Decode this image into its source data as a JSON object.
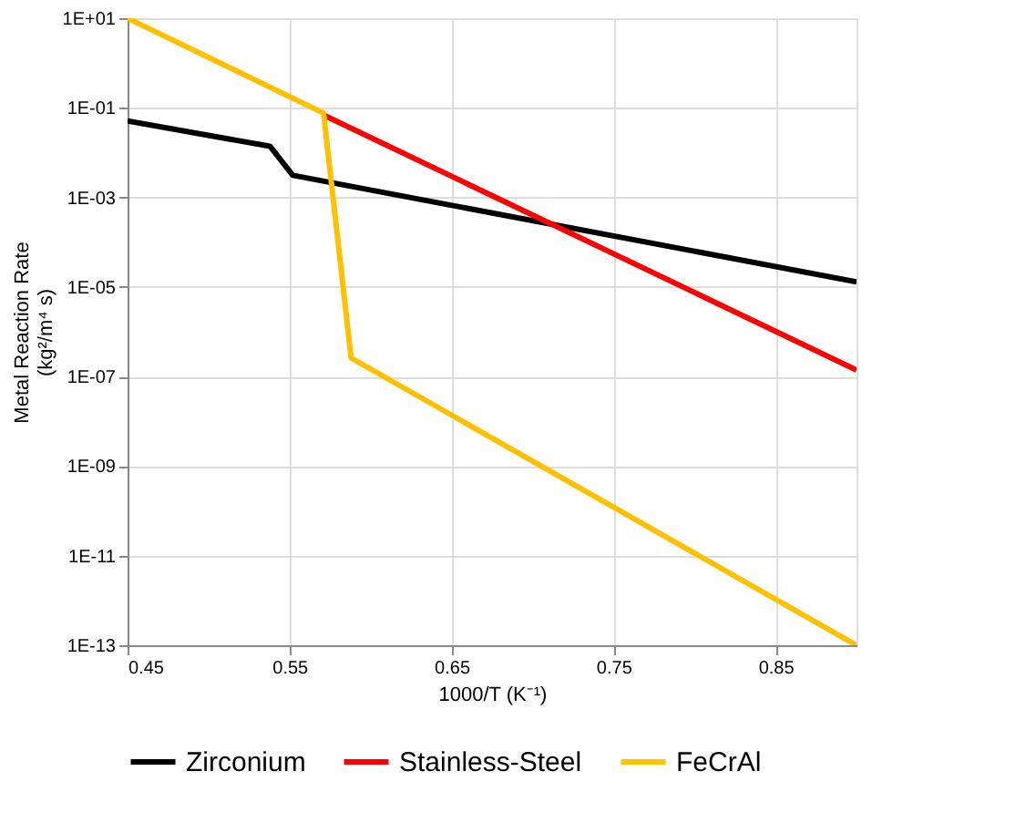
{
  "chart_data": {
    "type": "line",
    "xlabel": "1000/T (K⁻¹)",
    "ylabel": "Metal Reaction Rate\n(kg²/m⁴ s)",
    "series": [
      {
        "name": "Zirconium",
        "color": "#000000",
        "x": [
          0.45,
          0.538,
          0.552,
          0.9
        ],
        "values": [
          0.051,
          0.0138,
          0.0031,
          1.3e-05
        ]
      },
      {
        "name": "Stainless-Steel",
        "color": "#ff0000",
        "x": [
          0.571,
          0.9
        ],
        "values": [
          0.069,
          1.4e-07
        ]
      },
      {
        "name": "FeCrAl",
        "color": "#ffc000",
        "x": [
          0.45,
          0.571,
          0.588,
          0.9
        ],
        "values": [
          10,
          0.076,
          2.6e-07,
          1e-13
        ]
      }
    ],
    "xlim": [
      0.45,
      0.9
    ],
    "xticks": [
      0.45,
      0.55,
      0.65,
      0.75,
      0.85
    ],
    "ylim": [
      1e-13,
      10
    ],
    "log": "y",
    "yticks": [
      {
        "value": 10,
        "label": "1E+01"
      },
      {
        "value": 0.1,
        "label": "1E-01"
      },
      {
        "value": 0.001,
        "label": "1E-03"
      },
      {
        "value": 1e-05,
        "label": "1E-05"
      },
      {
        "value": 1e-07,
        "label": "1E-07"
      },
      {
        "value": 1e-09,
        "label": "1E-09"
      },
      {
        "value": 1e-11,
        "label": "1E-11"
      },
      {
        "value": 1e-13,
        "label": "1E-13"
      }
    ],
    "grid": true,
    "legend": "bottom",
    "marker": "none",
    "line_style": "solid"
  }
}
